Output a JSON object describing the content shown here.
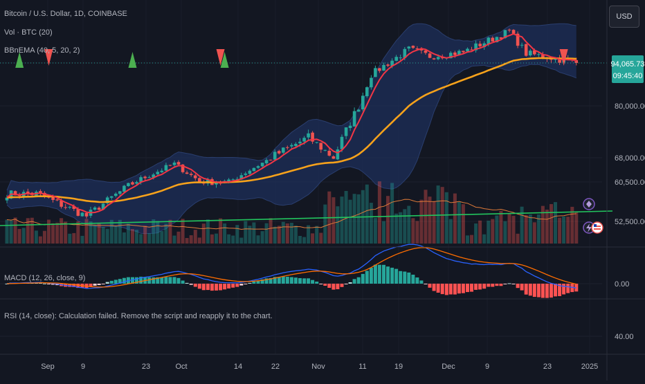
{
  "header": {
    "title": "Bitcoin / U.S. Dollar, 1D, COINBASE",
    "volume_label": "Vol · BTC (20)",
    "bbema_label": "BBnEMA (40, 5, 20, 2)",
    "currency": "USD"
  },
  "price_tag": {
    "price": "94,065.73",
    "countdown": "09:45:40"
  },
  "macd": {
    "label": "MACD (12, 26, close, 9)"
  },
  "rsi": {
    "message": "RSI (14, close): Calculation failed. Remove the script and reapply it to the chart."
  },
  "colors": {
    "background": "#131722",
    "up": "#26a69a",
    "down": "#ef5350",
    "ema": "#f7a21b",
    "basis": "#f23645",
    "band_fill": "#1e2f5a",
    "volume_ma": "#e07b39",
    "trend": "#22c55e",
    "macd_line": "#2962ff",
    "signal_line": "#ff6d00"
  },
  "chart_data": {
    "type": "candlestick",
    "title": "Bitcoin / U.S. Dollar, 1D, COINBASE",
    "xlabel": "",
    "ylabel": "",
    "x_ticks": [
      "Sep",
      "9",
      "23",
      "Oct",
      "14",
      "22",
      "Nov",
      "11",
      "19",
      "Dec",
      "9",
      "23",
      "2025"
    ],
    "y_ticks": [
      "80,000.00",
      "68,000.00",
      "60,500.00",
      "52,500.00"
    ],
    "macd_ticks": [
      "0.00"
    ],
    "rsi_ticks": [
      "40.00"
    ],
    "last_price": 94065.73,
    "price_anchors": [
      {
        "date": "Aug 25",
        "close": 58000
      },
      {
        "date": "Sep 6",
        "close": 53500
      },
      {
        "date": "Sep 15",
        "close": 59000
      },
      {
        "date": "Sep 27",
        "close": 66000
      },
      {
        "date": "Oct 3",
        "close": 60700
      },
      {
        "date": "Oct 10",
        "close": 60500
      },
      {
        "date": "Oct 21",
        "close": 68500
      },
      {
        "date": "Oct 29",
        "close": 72500
      },
      {
        "date": "Nov 4",
        "close": 68000
      },
      {
        "date": "Nov 10",
        "close": 80000
      },
      {
        "date": "Nov 13",
        "close": 90000
      },
      {
        "date": "Nov 22",
        "close": 99000
      },
      {
        "date": "Nov 27",
        "close": 96500
      },
      {
        "date": "Dec 5",
        "close": 98000
      },
      {
        "date": "Dec 16",
        "close": 106000
      },
      {
        "date": "Dec 20",
        "close": 97500
      },
      {
        "date": "Dec 26",
        "close": 96000
      },
      {
        "date": "Jan 1",
        "close": 94065.73
      }
    ],
    "signals": [
      {
        "date": "Aug 21",
        "type": "buy"
      },
      {
        "date": "Aug 28",
        "type": "sell"
      },
      {
        "date": "Sep 17",
        "type": "buy"
      },
      {
        "date": "Oct 8",
        "type": "sell"
      },
      {
        "date": "Oct 9",
        "type": "buy"
      },
      {
        "date": "Dec 29",
        "type": "sell"
      }
    ],
    "series": [
      {
        "name": "Vol · BTC (20)"
      },
      {
        "name": "BBnEMA (40, 5, 20, 2)"
      },
      {
        "name": "MACD (12, 26, close, 9)"
      }
    ],
    "grid": true
  }
}
